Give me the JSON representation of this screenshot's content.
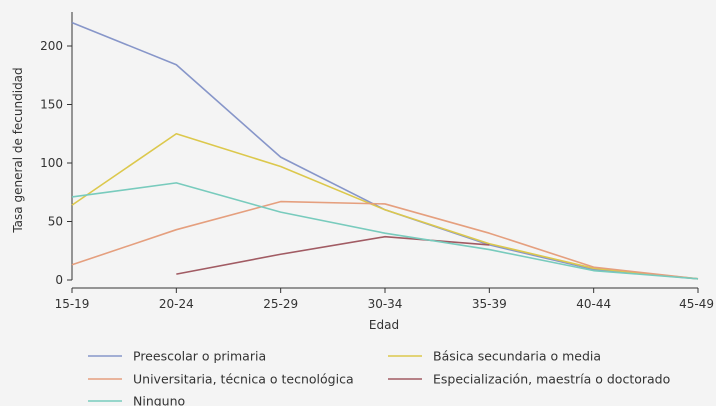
{
  "chart_data": {
    "type": "line",
    "xlabel": "Edad",
    "ylabel": "Tasa general de fecundidad",
    "categories": [
      "15-19",
      "20-24",
      "25-29",
      "30-34",
      "35-39",
      "40-44",
      "45-49"
    ],
    "yticks": [
      0,
      50,
      100,
      150,
      200
    ],
    "ylim": [
      0,
      225
    ],
    "grid": false,
    "legend_position": "bottom",
    "series": [
      {
        "name": "Preescolar o primaria",
        "color": "#8796c9",
        "values": [
          220,
          184,
          105,
          60,
          30,
          9,
          1
        ]
      },
      {
        "name": "Básica secundaria o media",
        "color": "#dcc84c",
        "values": [
          64,
          125,
          97,
          60,
          31,
          10,
          1
        ]
      },
      {
        "name": "Universitaria, técnica o tecnológica",
        "color": "#e59f7e",
        "values": [
          13,
          43,
          67,
          65,
          40,
          11,
          1
        ]
      },
      {
        "name": "Especialización, maestría o doctorado",
        "color": "#a15b63",
        "values": [
          null,
          5,
          22,
          37,
          30,
          null,
          null
        ]
      },
      {
        "name": "Ninguno",
        "color": "#78cbbd",
        "values": [
          71,
          83,
          58,
          40,
          26,
          8,
          1
        ]
      }
    ]
  }
}
